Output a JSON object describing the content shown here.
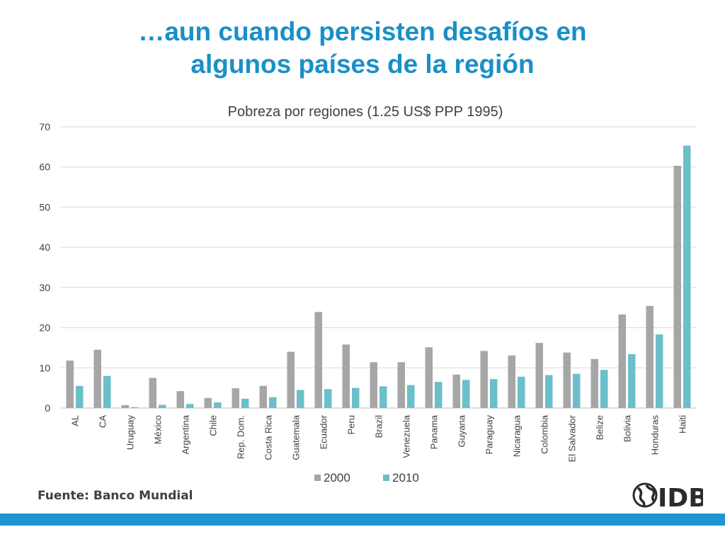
{
  "slide": {
    "title_line1": "…aun cuando persisten desafíos en",
    "title_line2": "algunos países de la región",
    "source": "Fuente: Banco Mundial",
    "logo_text": "IDB"
  },
  "colors": {
    "title": "#1a8fc8",
    "series_2000": "#a6a6a6",
    "series_2010": "#6bbfca",
    "bottom_bar": "#1e96d4"
  },
  "chart_data": {
    "type": "bar",
    "title": "Pobreza por regiones (1.25 US$ PPP 1995)",
    "xlabel": "",
    "ylabel": "",
    "ylim": [
      0,
      70
    ],
    "yticks": [
      0,
      10,
      20,
      30,
      40,
      50,
      60,
      70
    ],
    "grid": true,
    "legend_position": "bottom",
    "categories": [
      "AL",
      "CA",
      "Uruguay",
      "México",
      "Argentina",
      "Chile",
      "Rep. Dom.",
      "Costa Rica",
      "Guatemala",
      "Ecuador",
      "Peru",
      "Brazil",
      "Venezuela",
      "Panama",
      "Guyana",
      "Paraguay",
      "Nicaragua",
      "Colombia",
      "El Salvador",
      "Belize",
      "Bolivia",
      "Honduras",
      "Haiti"
    ],
    "series": [
      {
        "name": "2000",
        "color": "#a6a6a6",
        "values": [
          11.8,
          14.5,
          0.7,
          7.5,
          4.2,
          2.5,
          4.9,
          5.5,
          14.0,
          23.9,
          15.8,
          11.4,
          11.4,
          15.1,
          8.3,
          14.2,
          13.1,
          16.2,
          13.8,
          12.2,
          23.3,
          25.4,
          60.3
        ]
      },
      {
        "name": "2010",
        "color": "#6bbfca",
        "values": [
          5.5,
          8.0,
          0.2,
          0.8,
          1.0,
          1.4,
          2.3,
          2.7,
          4.5,
          4.7,
          5.0,
          5.4,
          5.7,
          6.5,
          7.0,
          7.2,
          7.8,
          8.2,
          8.5,
          9.5,
          13.4,
          18.3,
          65.3
        ]
      }
    ]
  }
}
